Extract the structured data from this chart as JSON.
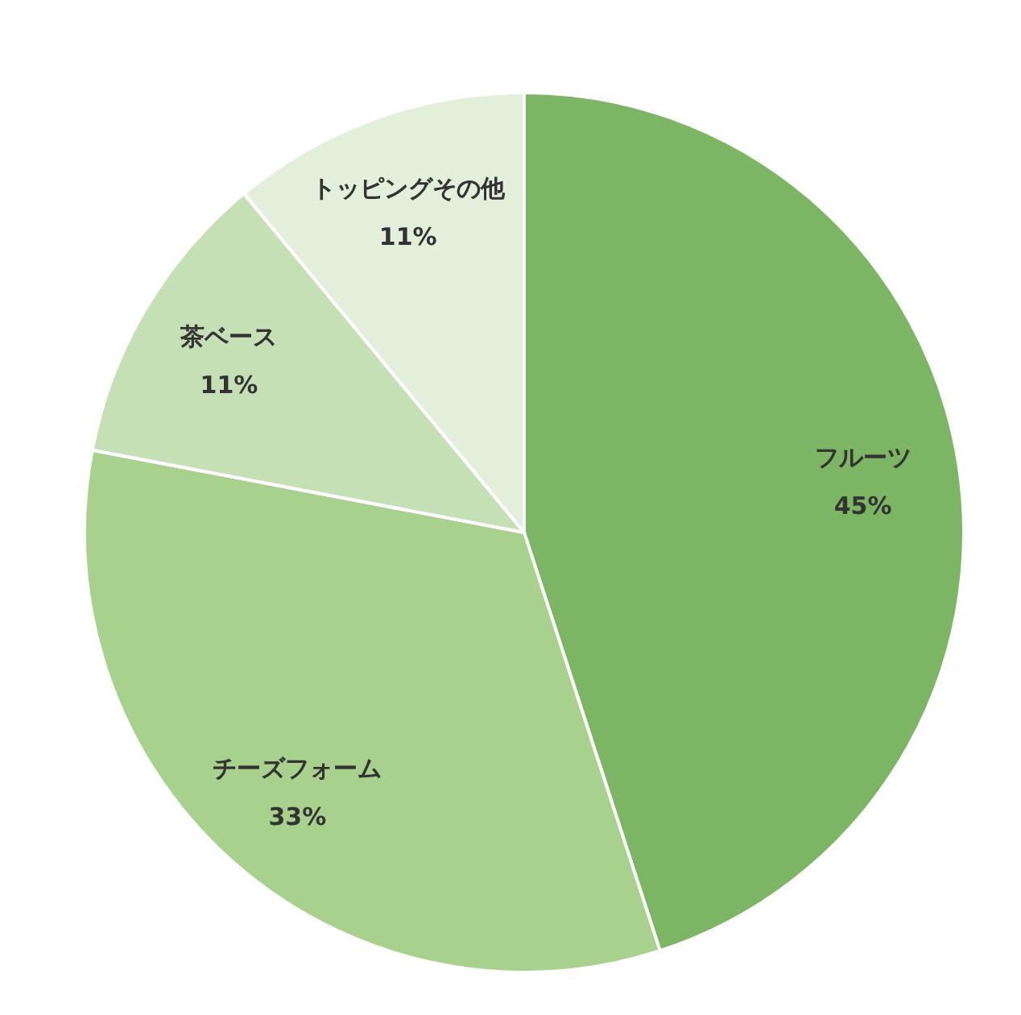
{
  "chart_data": {
    "type": "pie",
    "categories": [
      "フルーツ",
      "チーズフォーム",
      "茶ベース",
      "トッピングその他"
    ],
    "values": [
      45,
      33,
      11,
      11
    ],
    "value_labels": [
      "45%",
      "33%",
      "11%",
      "11%"
    ],
    "colors": [
      "#7cb563",
      "#a9d18e",
      "#c5e0b4",
      "#e2efda"
    ]
  }
}
